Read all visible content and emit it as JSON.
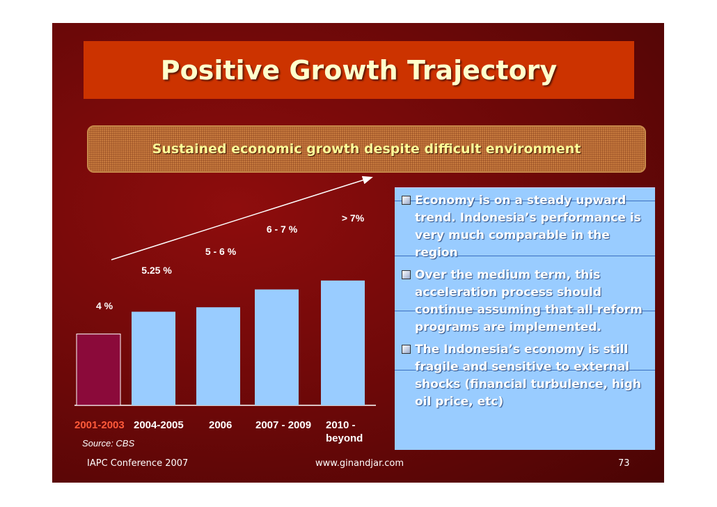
{
  "slide": {
    "title": "Positive Growth Trajectory",
    "subtitle": "Sustained economic growth  despite difficult environment",
    "source": "Source: CBS",
    "bullets": [
      "Economy is on a steady upward trend. Indonesia’s performance is very much comparable in the region",
      "Over the medium term, this acceleration process should continue assuming that all reform programs are implemented.",
      "The Indonesia’s economy is still fragile and sensitive to external shocks (financial turbulence, high oil price, etc)"
    ],
    "footer": {
      "left": "IAPC Conference 2007",
      "center": "www.ginandjar.com",
      "page": "73"
    },
    "colors": {
      "background": "#7a0a0a",
      "title_bar": "#cc3300",
      "title_text": "#ffffcc",
      "bar_highlight": "#8b0a3a",
      "bar_default": "#99ccff",
      "bullet_panel": "#99ccff",
      "highlight_label": "#ff5a3a"
    },
    "icons": [
      "checkbox-bullet-icon",
      "trend-arrow-icon"
    ]
  },
  "chart_data": {
    "type": "bar",
    "categories": [
      "2001-2003",
      "2004-2005",
      "2006",
      "2007 - 2009",
      "2010 - beyond"
    ],
    "values": [
      4,
      5.25,
      5.5,
      6.5,
      7
    ],
    "data_labels": [
      "4 %",
      "5.25 %",
      "5 - 6 %",
      "6 - 7 %",
      "> 7%"
    ],
    "highlighted_category": "2001-2003",
    "title": "",
    "xlabel": "",
    "ylabel": "",
    "ylim": [
      0,
      8
    ],
    "grid": false,
    "legend": "none",
    "annotation": "upward trend arrow"
  }
}
